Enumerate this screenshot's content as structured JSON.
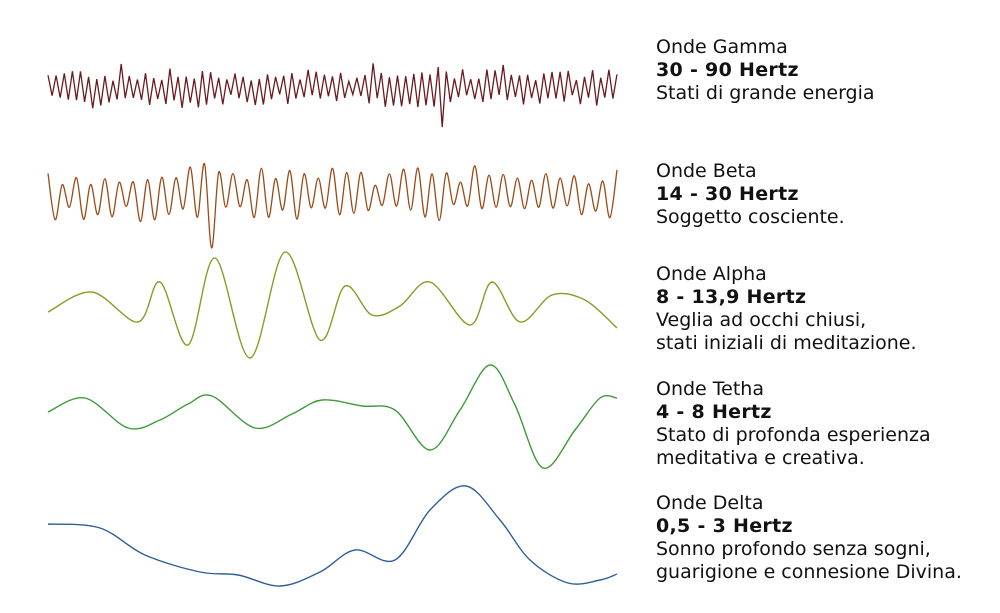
{
  "colors": {
    "gamma": "#6b1a22",
    "beta": "#9a4a16",
    "alpha": "#8a9a24",
    "theta": "#3f9a3a",
    "delta": "#2f5f9a"
  },
  "bands": [
    {
      "id": "gamma",
      "name": "Onde Gamma",
      "freq": "30 - 90 Hertz",
      "desc": [
        "Stati di grande energia"
      ]
    },
    {
      "id": "beta",
      "name": "Onde Beta",
      "freq": "14 - 30 Hertz",
      "desc": [
        "Soggetto cosciente."
      ]
    },
    {
      "id": "alpha",
      "name": "Onde Alpha",
      "freq": "8 - 13,9 Hertz",
      "desc": [
        "Veglia ad occhi chiusi,",
        "stati iniziali di meditazione."
      ]
    },
    {
      "id": "theta",
      "name": "Onde Tetha",
      "freq": "4 - 8 Hertz",
      "desc": [
        "Stato di profonda esperienza",
        "meditativa e creativa."
      ]
    },
    {
      "id": "delta",
      "name": "Onde Delta",
      "freq": "0,5 - 3 Hertz",
      "desc": [
        "Sonno profondo senza sogni,",
        "guarigione e connesione Divina."
      ]
    }
  ]
}
